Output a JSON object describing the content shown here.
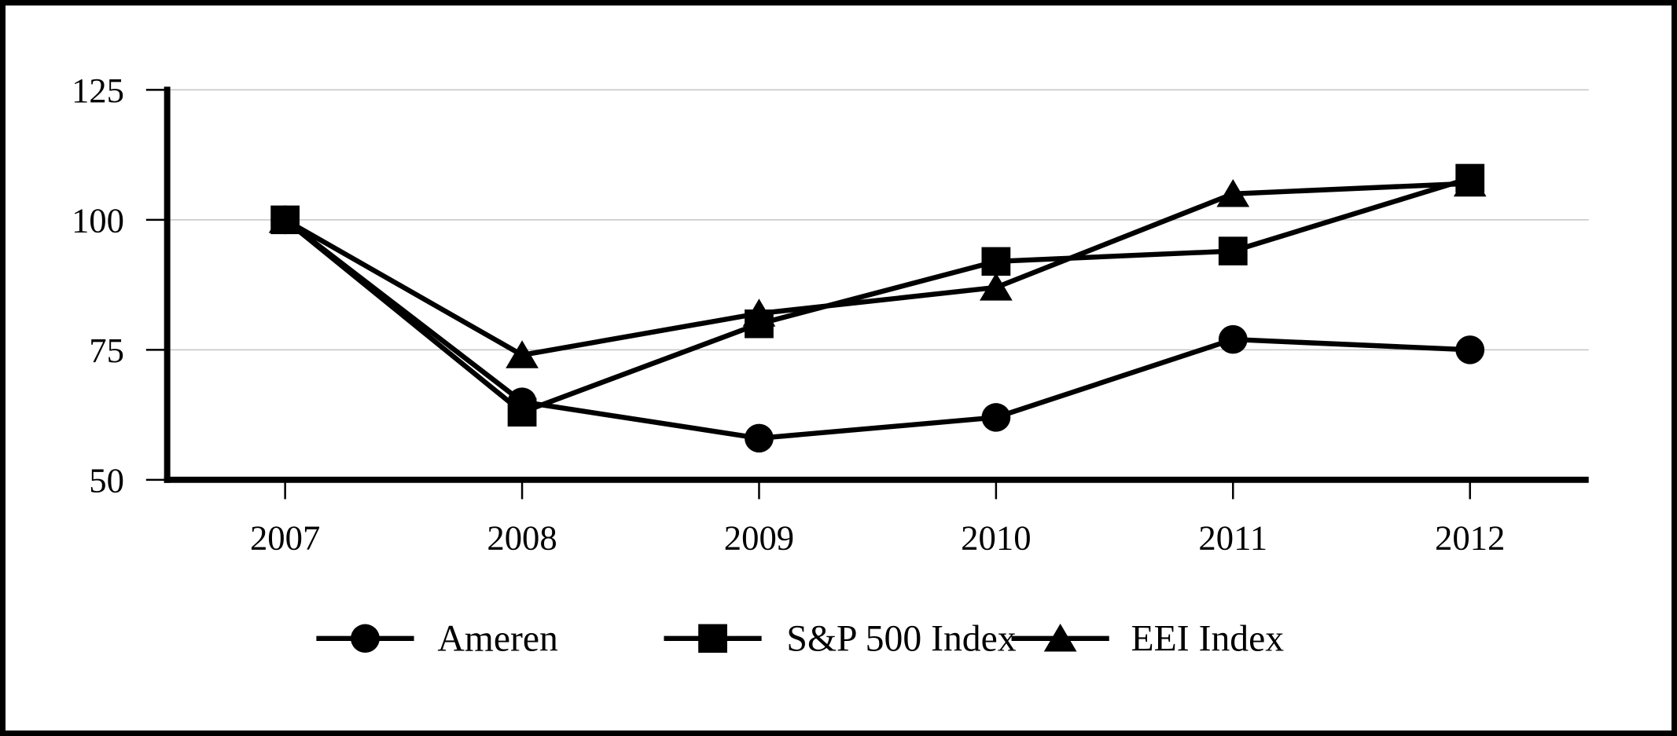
{
  "chart_data": {
    "type": "line",
    "title": "",
    "xlabel": "",
    "ylabel": "",
    "x": [
      "2007",
      "2008",
      "2009",
      "2010",
      "2011",
      "2012"
    ],
    "series": [
      {
        "name": "Ameren",
        "marker": "circle",
        "values": [
          100,
          65,
          58,
          62,
          77,
          75
        ]
      },
      {
        "name": "S&P 500 Index",
        "marker": "square",
        "values": [
          100,
          63,
          80,
          92,
          94,
          108
        ]
      },
      {
        "name": "EEI Index",
        "marker": "triangle",
        "values": [
          100,
          74,
          82,
          87,
          105,
          107
        ]
      }
    ],
    "ylim": [
      50,
      125
    ],
    "yticks": [
      50,
      75,
      100,
      125
    ],
    "grid": true,
    "legend_position": "bottom"
  },
  "colors": {
    "series": "#000000",
    "axis": "#000000",
    "gridline": "#c4c4c4",
    "background": "#ffffff",
    "border": "#000000"
  }
}
